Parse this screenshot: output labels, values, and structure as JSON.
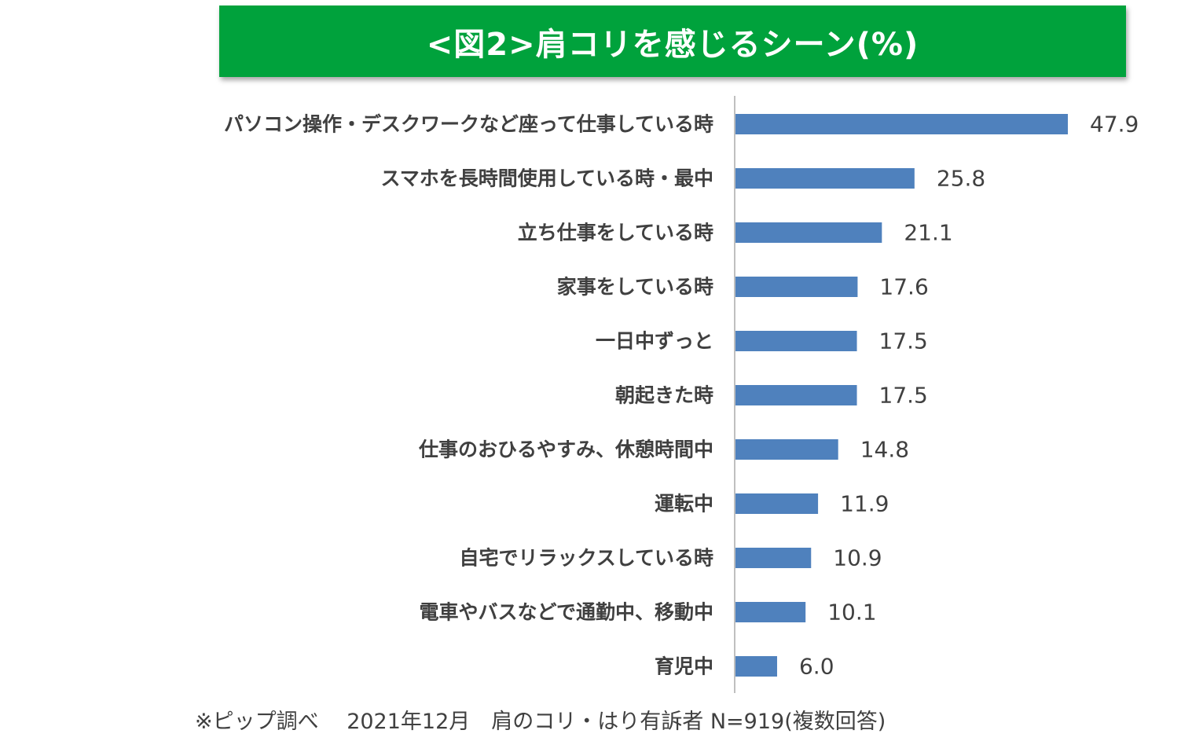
{
  "chart_data": {
    "type": "bar",
    "orientation": "horizontal",
    "title": "<図2>肩コリを感じるシーン(%)",
    "categories": [
      "パソコン操作・デスクワークなど座って仕事している時",
      "スマホを長時間使用している時・最中",
      "立ち仕事をしている時",
      "家事をしている時",
      "一日中ずっと",
      "朝起きた時",
      "仕事のおひるやすみ、休憩時間中",
      "運転中",
      "自宅でリラックスしている時",
      "電車やバスなどで通勤中、移動中",
      "育児中"
    ],
    "values": [
      47.9,
      25.8,
      21.1,
      17.6,
      17.5,
      17.5,
      14.8,
      11.9,
      10.9,
      10.1,
      6.0
    ],
    "value_labels": [
      "47.9",
      "25.8",
      "21.1",
      "17.6",
      "17.5",
      "17.5",
      "14.8",
      "11.9",
      "10.9",
      "10.1",
      "6.0"
    ],
    "xlim": [
      0,
      50
    ],
    "bar_color": "#4f81bd",
    "xlabel": "",
    "ylabel": "",
    "grid": false,
    "legend": "none"
  },
  "title_color": "#00a23c",
  "footnote": "※ピップ調べ　 2021年12月　肩のコリ・はり有訴者 N=919(複数回答)"
}
